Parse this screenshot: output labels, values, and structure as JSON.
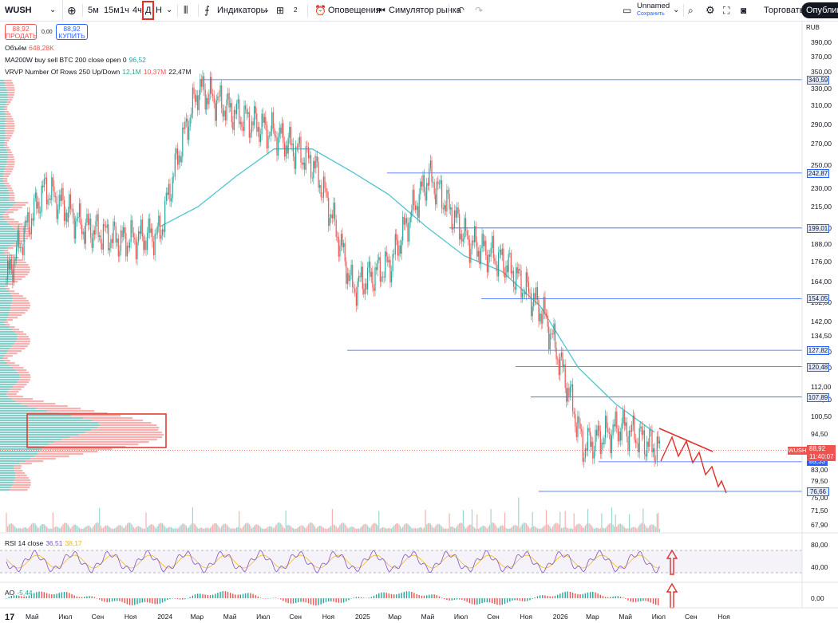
{
  "toolbar": {
    "symbol": "WUSH",
    "intervals": [
      "5м",
      "15м",
      "1ч",
      "4ч",
      "Д",
      "Н"
    ],
    "selected_interval": "Д",
    "indicators_label": "Индикаторы",
    "layouts_count": "2",
    "alerts_label": "Оповещения",
    "replay_label": "Симулятор рынка",
    "layout_name": "Unnamed",
    "layout_status": "Сохранить",
    "trade_label": "Торговать",
    "publish_label": "Опублико"
  },
  "order": {
    "sell_price": "88,92",
    "sell_label": "ПРОДАТЬ",
    "spread": "0,00",
    "buy_price": "88,92",
    "buy_label": "КУПИТЬ"
  },
  "legends": {
    "volume_label": "Объём",
    "volume_value": "648,28K",
    "ma_label": "MA200W buy sell BTC 200 close open 0",
    "ma_value": "96,52",
    "vrvp_label": "VRVP Number Of Rows 250 Up/Down",
    "vrvp_up": "12,1M",
    "vrvp_down": "10,37M",
    "vrvp_total": "22,47M",
    "rsi_label": "RSI 14 close",
    "rsi_value": "36,51",
    "rsi_ma_value": "38,17",
    "ao_label": "AO",
    "ao_value": "-5,44"
  },
  "price_axis": {
    "currency": "RUB",
    "ticks": [
      "390,00",
      "370,00",
      "350,00",
      "330,00",
      "310,00",
      "290,00",
      "270,00",
      "250,00",
      "230,00",
      "215,00",
      "199,00",
      "188,00",
      "176,00",
      "164,00",
      "152,00",
      "142,00",
      "134,50",
      "127,00",
      "120,00",
      "112,00",
      "107,00",
      "100,50",
      "94,50",
      "88,50",
      "83,00",
      "79,50",
      "75,00",
      "71,50",
      "67,90"
    ]
  },
  "levels": [
    "340,59",
    "242,87",
    "199,01",
    "154,05",
    "127,82",
    "120,48",
    "107,89",
    "85,33",
    "76,66"
  ],
  "last_price": {
    "symbol": "WUSH",
    "price": "88,92",
    "countdown": "11:40:07"
  },
  "rsi_axis": [
    "80,00",
    "40,00"
  ],
  "ao_axis": [
    "0,00"
  ],
  "time_axis": [
    "Май",
    "Июл",
    "Сен",
    "Ноя",
    "2024",
    "Мар",
    "Май",
    "Июл",
    "Сен",
    "Ноя",
    "2025",
    "Мар",
    "Май",
    "Июл",
    "Сен",
    "Ноя",
    "2026",
    "Мар",
    "Май",
    "Июл",
    "Сен",
    "Ноя"
  ],
  "chart_data": {
    "type": "line",
    "title": "",
    "xlabel": "",
    "ylabel": "",
    "y_scale": "log",
    "ylim": [
      67.9,
      390
    ],
    "x": [
      "2023-05",
      "2023-07",
      "2023-09",
      "2023-11",
      "2024-01",
      "2024-03",
      "2024-05",
      "2024-07",
      "2024-09",
      "2024-11",
      "2025-01",
      "2025-03",
      "2025-05",
      "2025-07",
      "2025-09",
      "2025-11",
      "2026-01",
      "2026-03"
    ],
    "series": [
      {
        "values": [
          165,
          230,
          200,
          190,
          195,
          330,
          300,
          280,
          250,
          160,
          175,
          240,
          190,
          175,
          145,
          90,
          97,
          88.92
        ]
      },
      {
        "values": [
          null,
          null,
          null,
          null,
          200,
          215,
          240,
          265,
          265,
          245,
          225,
          200,
          180,
          170,
          150,
          120,
          105,
          95
        ]
      }
    ],
    "colors": {
      "up": "#26a69a",
      "down": "#ef5350",
      "ma": "#50c4d0",
      "levels": "#2962ff",
      "annotation": "#e0302a"
    }
  }
}
